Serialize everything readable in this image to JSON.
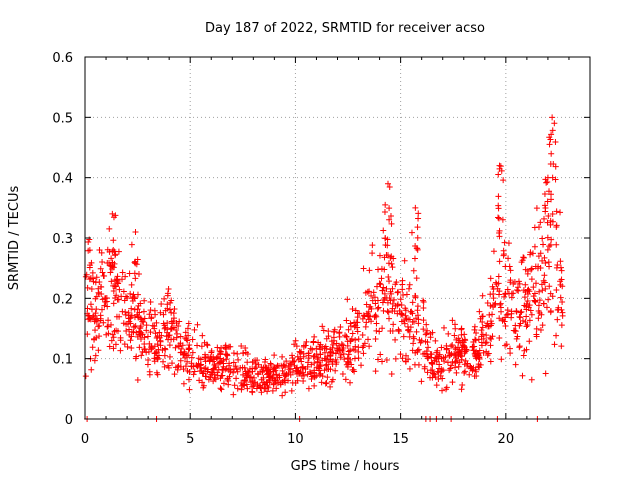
{
  "chart_data": {
    "type": "scatter",
    "title": "Day 187 of 2022, SRMTID for receiver acso",
    "xlabel": "GPS time / hours",
    "ylabel": "SRMTID / TECUs",
    "xlim": [
      0,
      24
    ],
    "ylim": [
      0,
      0.6
    ],
    "grid": true,
    "x_ticks": [
      0,
      5,
      10,
      15,
      20
    ],
    "x_tick_labels": [
      "0",
      "5",
      "10",
      "15",
      "20"
    ],
    "y_ticks": [
      0,
      0.1,
      0.2,
      0.3,
      0.4,
      0.5,
      0.6
    ],
    "y_tick_labels": [
      "0",
      "0.1",
      "0.2",
      "0.3",
      "0.4",
      "0.5",
      "0.6"
    ],
    "marker": "plus",
    "color": "#ff0000",
    "series": [
      {
        "name": "SRMTID",
        "trend_x": [
          0,
          0.5,
          1,
          1.5,
          2,
          2.5,
          3,
          3.5,
          4,
          4.5,
          5,
          5.5,
          6,
          6.5,
          7,
          7.5,
          8,
          8.5,
          9,
          9.5,
          10,
          10.5,
          11,
          11.5,
          12,
          12.5,
          13,
          13.5,
          14,
          14.5,
          15,
          15.5,
          16,
          16.5,
          17,
          17.5,
          18,
          18.5,
          19,
          19.5,
          20,
          20.5,
          21,
          21.5,
          22,
          22.5,
          22.7
        ],
        "trend_y": [
          0.19,
          0.2,
          0.21,
          0.2,
          0.17,
          0.15,
          0.14,
          0.13,
          0.15,
          0.12,
          0.11,
          0.1,
          0.09,
          0.09,
          0.08,
          0.08,
          0.07,
          0.07,
          0.07,
          0.08,
          0.09,
          0.09,
          0.1,
          0.1,
          0.11,
          0.12,
          0.13,
          0.17,
          0.22,
          0.2,
          0.18,
          0.16,
          0.14,
          0.1,
          0.1,
          0.12,
          0.1,
          0.11,
          0.14,
          0.2,
          0.2,
          0.17,
          0.18,
          0.23,
          0.27,
          0.24,
          0.2
        ],
        "peaks": [
          {
            "x": 1.3,
            "y": 0.34
          },
          {
            "x": 2.4,
            "y": 0.31
          },
          {
            "x": 14.4,
            "y": 0.39
          },
          {
            "x": 15.7,
            "y": 0.35
          },
          {
            "x": 19.7,
            "y": 0.42
          },
          {
            "x": 22.0,
            "y": 0.4
          },
          {
            "x": 22.2,
            "y": 0.5
          }
        ],
        "zero_values_x": [
          0.1,
          3.4,
          10.2,
          16.2,
          16.4,
          16.7,
          17.4,
          19.6,
          21.5
        ]
      }
    ]
  }
}
